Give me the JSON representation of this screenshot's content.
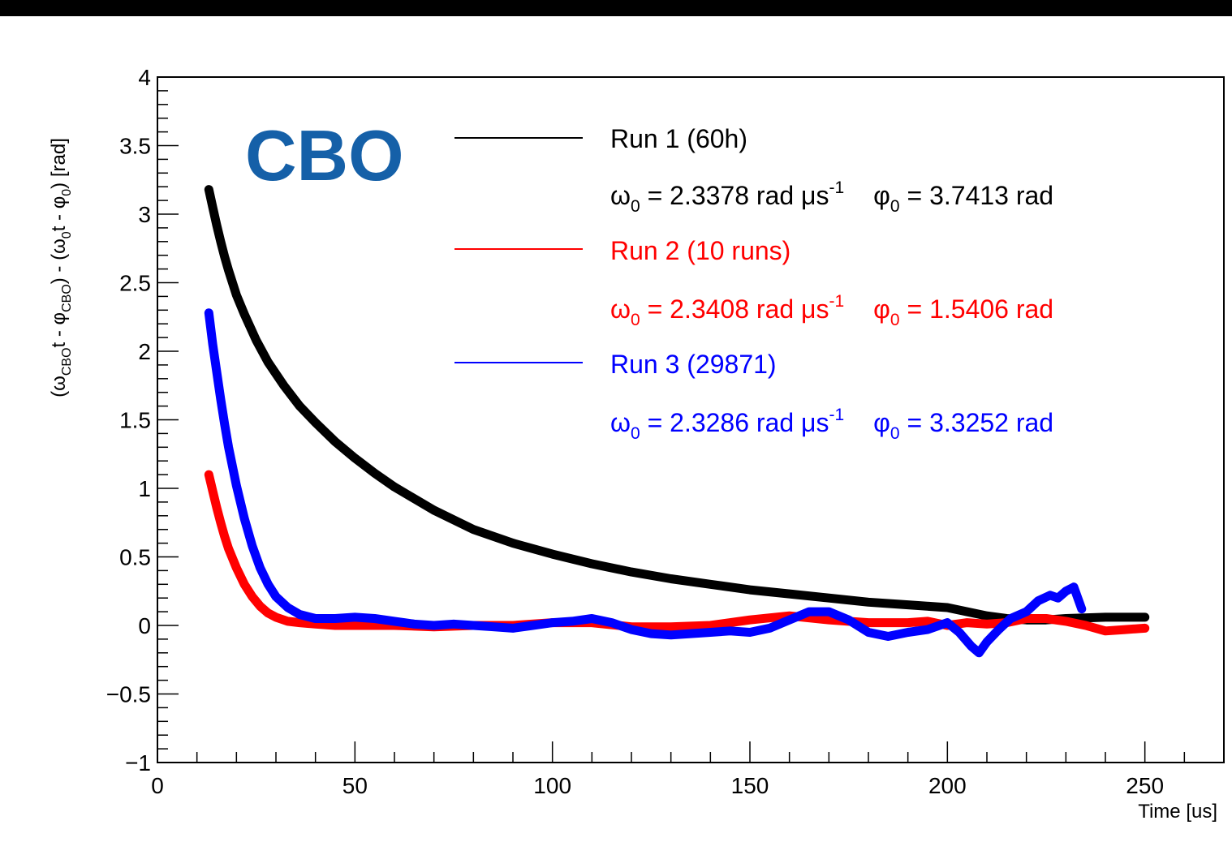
{
  "chart_data": {
    "type": "line",
    "title": "",
    "overlay_label": "CBO",
    "xlabel": "Time [us]",
    "ylabel_parts": {
      "p1": "(ω",
      "p1sub": "CBO",
      "p2": "t - φ",
      "p2sub": "CBO",
      "p3": ") - (ω",
      "p3sub": "0",
      "p4": "t - φ",
      "p4sub": "0",
      "p5": ") [rad]"
    },
    "xlim": [
      0,
      270
    ],
    "ylim": [
      -1,
      4
    ],
    "x_ticks": [
      {
        "v": 0,
        "label": "0"
      },
      {
        "v": 50,
        "label": "50"
      },
      {
        "v": 100,
        "label": "100"
      },
      {
        "v": 150,
        "label": "150"
      },
      {
        "v": 200,
        "label": "200"
      },
      {
        "v": 250,
        "label": "250"
      }
    ],
    "y_ticks": [
      {
        "v": -1,
        "label": "−1"
      },
      {
        "v": -0.5,
        "label": "−0.5"
      },
      {
        "v": 0,
        "label": "0"
      },
      {
        "v": 0.5,
        "label": "0.5"
      },
      {
        "v": 1,
        "label": "1"
      },
      {
        "v": 1.5,
        "label": "1.5"
      },
      {
        "v": 2,
        "label": "2"
      },
      {
        "v": 2.5,
        "label": "2.5"
      },
      {
        "v": 3,
        "label": "3"
      },
      {
        "v": 3.5,
        "label": "3.5"
      },
      {
        "v": 4,
        "label": "4"
      }
    ],
    "legend_position": "top-right",
    "series": [
      {
        "name": "Run 1 (60h)",
        "color": "#000000",
        "omega0": "2.3378",
        "phi0": "3.7413",
        "x": [
          13,
          14,
          15,
          16,
          17,
          18,
          20,
          22,
          25,
          28,
          32,
          36,
          40,
          45,
          50,
          55,
          60,
          70,
          80,
          90,
          100,
          110,
          120,
          130,
          140,
          150,
          160,
          170,
          180,
          190,
          200,
          205,
          210,
          215,
          220,
          225,
          230,
          240,
          250
        ],
        "y": [
          3.18,
          3.05,
          2.92,
          2.8,
          2.69,
          2.59,
          2.41,
          2.27,
          2.08,
          1.92,
          1.75,
          1.6,
          1.48,
          1.34,
          1.22,
          1.11,
          1.01,
          0.84,
          0.7,
          0.6,
          0.52,
          0.45,
          0.39,
          0.34,
          0.3,
          0.26,
          0.23,
          0.2,
          0.17,
          0.15,
          0.13,
          0.1,
          0.07,
          0.05,
          0.04,
          0.04,
          0.05,
          0.06,
          0.06
        ]
      },
      {
        "name": "Run 2 (10 runs)",
        "color": "#ff0000",
        "omega0": "2.3408",
        "phi0": "1.5406",
        "x": [
          13,
          14,
          15,
          16,
          17,
          18,
          20,
          22,
          24,
          26,
          28,
          30,
          33,
          36,
          40,
          45,
          50,
          60,
          70,
          80,
          90,
          100,
          110,
          120,
          130,
          140,
          150,
          160,
          170,
          180,
          190,
          195,
          200,
          205,
          210,
          215,
          220,
          225,
          230,
          235,
          240,
          245,
          250
        ],
        "y": [
          1.1,
          0.98,
          0.86,
          0.75,
          0.65,
          0.56,
          0.42,
          0.3,
          0.21,
          0.14,
          0.09,
          0.06,
          0.03,
          0.02,
          0.01,
          0.0,
          0.0,
          0.0,
          -0.01,
          0.0,
          0.0,
          0.02,
          0.02,
          -0.01,
          -0.01,
          0.0,
          0.04,
          0.07,
          0.04,
          0.02,
          0.02,
          0.03,
          0.0,
          0.02,
          0.01,
          0.02,
          0.05,
          0.05,
          0.03,
          0.0,
          -0.04,
          -0.03,
          -0.02
        ]
      },
      {
        "name": "Run 3 (29871)",
        "color": "#0000ff",
        "omega0": "2.3286",
        "phi0": "3.3252",
        "x": [
          13,
          14,
          15,
          16,
          17,
          18,
          20,
          22,
          24,
          26,
          28,
          30,
          33,
          36,
          40,
          45,
          50,
          55,
          60,
          65,
          70,
          75,
          80,
          85,
          90,
          95,
          100,
          105,
          110,
          115,
          120,
          125,
          130,
          135,
          140,
          145,
          150,
          155,
          160,
          165,
          170,
          175,
          180,
          185,
          190,
          195,
          200,
          203,
          206,
          208,
          210,
          213,
          216,
          220,
          223,
          226,
          228,
          230,
          232,
          234
        ],
        "y": [
          2.28,
          2.05,
          1.85,
          1.65,
          1.47,
          1.3,
          1.02,
          0.78,
          0.58,
          0.42,
          0.3,
          0.21,
          0.13,
          0.08,
          0.05,
          0.05,
          0.06,
          0.05,
          0.03,
          0.01,
          0.0,
          0.01,
          0.0,
          -0.01,
          -0.02,
          0.0,
          0.02,
          0.03,
          0.05,
          0.02,
          -0.03,
          -0.06,
          -0.07,
          -0.06,
          -0.05,
          -0.04,
          -0.05,
          -0.02,
          0.04,
          0.1,
          0.1,
          0.04,
          -0.05,
          -0.08,
          -0.05,
          -0.03,
          0.02,
          -0.05,
          -0.15,
          -0.2,
          -0.12,
          -0.03,
          0.05,
          0.1,
          0.18,
          0.22,
          0.2,
          0.25,
          0.28,
          0.12
        ]
      }
    ]
  }
}
